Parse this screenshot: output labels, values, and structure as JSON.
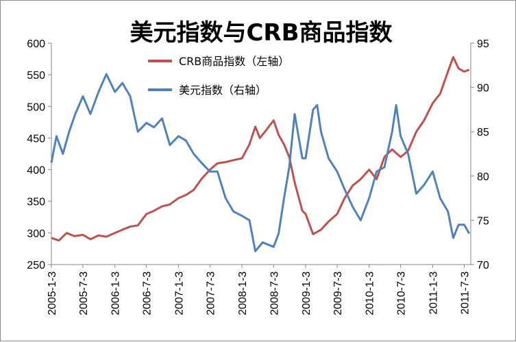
{
  "chart_data": {
    "type": "line",
    "title": "美元指数与CRB商品指数",
    "xlabel": "",
    "ylabel_left": "",
    "ylabel_right": "",
    "x_tick_labels": [
      "2005-1-3",
      "2005-7-3",
      "2006-1-3",
      "2006-7-3",
      "2007-1-3",
      "2007-7-3",
      "2008-1-3",
      "2008-7-3",
      "2009-1-3",
      "2009-7-3",
      "2010-1-3",
      "2010-7-3",
      "2011-1-3",
      "2011-7-3"
    ],
    "y_left": {
      "min": 250,
      "max": 600,
      "ticks": [
        250,
        300,
        350,
        400,
        450,
        500,
        550,
        600
      ]
    },
    "y_right": {
      "min": 70,
      "max": 95,
      "ticks": [
        70,
        75,
        80,
        85,
        90,
        95
      ]
    },
    "grid": false,
    "legend": {
      "position": "top-center"
    },
    "series": [
      {
        "name": "CRB商品指数（左轴）",
        "axis": "left",
        "color": "#C0504D",
        "points": [
          [
            "2005-01-03",
            292
          ],
          [
            "2005-02-15",
            288
          ],
          [
            "2005-04-01",
            300
          ],
          [
            "2005-05-15",
            295
          ],
          [
            "2005-07-03",
            297
          ],
          [
            "2005-08-15",
            290
          ],
          [
            "2005-10-01",
            296
          ],
          [
            "2005-11-15",
            294
          ],
          [
            "2006-01-03",
            300
          ],
          [
            "2006-02-15",
            305
          ],
          [
            "2006-04-01",
            310
          ],
          [
            "2006-05-15",
            312
          ],
          [
            "2006-07-03",
            330
          ],
          [
            "2006-08-15",
            335
          ],
          [
            "2006-10-01",
            342
          ],
          [
            "2006-11-15",
            345
          ],
          [
            "2007-01-03",
            355
          ],
          [
            "2007-02-15",
            360
          ],
          [
            "2007-04-01",
            368
          ],
          [
            "2007-05-15",
            385
          ],
          [
            "2007-07-03",
            400
          ],
          [
            "2007-08-15",
            410
          ],
          [
            "2007-10-01",
            412
          ],
          [
            "2007-11-15",
            415
          ],
          [
            "2008-01-03",
            418
          ],
          [
            "2008-02-15",
            440
          ],
          [
            "2008-03-20",
            468
          ],
          [
            "2008-04-15",
            450
          ],
          [
            "2008-05-20",
            462
          ],
          [
            "2008-07-03",
            478
          ],
          [
            "2008-08-01",
            455
          ],
          [
            "2008-09-01",
            440
          ],
          [
            "2008-10-01",
            420
          ],
          [
            "2008-11-01",
            380
          ],
          [
            "2008-12-15",
            335
          ],
          [
            "2009-01-03",
            330
          ],
          [
            "2009-02-15",
            298
          ],
          [
            "2009-04-01",
            305
          ],
          [
            "2009-05-15",
            318
          ],
          [
            "2009-07-03",
            330
          ],
          [
            "2009-08-15",
            355
          ],
          [
            "2009-10-01",
            375
          ],
          [
            "2009-11-15",
            385
          ],
          [
            "2010-01-03",
            400
          ],
          [
            "2010-02-15",
            385
          ],
          [
            "2010-04-01",
            420
          ],
          [
            "2010-05-15",
            432
          ],
          [
            "2010-07-03",
            420
          ],
          [
            "2010-08-15",
            430
          ],
          [
            "2010-10-01",
            460
          ],
          [
            "2010-11-15",
            478
          ],
          [
            "2011-01-03",
            505
          ],
          [
            "2011-02-15",
            520
          ],
          [
            "2011-04-01",
            555
          ],
          [
            "2011-05-01",
            578
          ],
          [
            "2011-06-01",
            560
          ],
          [
            "2011-07-03",
            555
          ],
          [
            "2011-08-01",
            558
          ]
        ]
      },
      {
        "name": "美元指数（右轴）",
        "axis": "right",
        "color": "#4F81BD",
        "points": [
          [
            "2005-01-03",
            81.5
          ],
          [
            "2005-02-01",
            84.5
          ],
          [
            "2005-03-10",
            82.5
          ],
          [
            "2005-04-15",
            85.0
          ],
          [
            "2005-05-20",
            87.0
          ],
          [
            "2005-07-03",
            89.0
          ],
          [
            "2005-08-15",
            87.0
          ],
          [
            "2005-10-01",
            89.5
          ],
          [
            "2005-11-15",
            91.5
          ],
          [
            "2006-01-03",
            89.5
          ],
          [
            "2006-02-15",
            90.5
          ],
          [
            "2006-04-01",
            89.0
          ],
          [
            "2006-05-15",
            85.0
          ],
          [
            "2006-07-03",
            86.0
          ],
          [
            "2006-08-15",
            85.5
          ],
          [
            "2006-10-01",
            86.5
          ],
          [
            "2006-11-15",
            83.5
          ],
          [
            "2007-01-03",
            84.5
          ],
          [
            "2007-02-15",
            84.0
          ],
          [
            "2007-04-01",
            82.5
          ],
          [
            "2007-05-15",
            81.5
          ],
          [
            "2007-07-03",
            80.5
          ],
          [
            "2007-08-15",
            80.5
          ],
          [
            "2007-10-01",
            77.5
          ],
          [
            "2007-11-15",
            76.0
          ],
          [
            "2008-01-03",
            75.5
          ],
          [
            "2008-02-15",
            75.0
          ],
          [
            "2008-03-20",
            71.5
          ],
          [
            "2008-05-01",
            72.5
          ],
          [
            "2008-07-03",
            72.0
          ],
          [
            "2008-08-01",
            73.5
          ],
          [
            "2008-09-01",
            77.5
          ],
          [
            "2008-10-01",
            81.0
          ],
          [
            "2008-11-01",
            87.0
          ],
          [
            "2008-12-15",
            82.0
          ],
          [
            "2009-01-03",
            82.0
          ],
          [
            "2009-02-15",
            87.5
          ],
          [
            "2009-03-10",
            88.0
          ],
          [
            "2009-04-01",
            85.0
          ],
          [
            "2009-05-15",
            82.0
          ],
          [
            "2009-07-03",
            80.5
          ],
          [
            "2009-08-15",
            78.5
          ],
          [
            "2009-10-01",
            76.5
          ],
          [
            "2009-11-15",
            75.0
          ],
          [
            "2010-01-03",
            77.5
          ],
          [
            "2010-02-15",
            80.5
          ],
          [
            "2010-04-01",
            81.0
          ],
          [
            "2010-05-15",
            85.0
          ],
          [
            "2010-06-07",
            88.0
          ],
          [
            "2010-07-03",
            84.5
          ],
          [
            "2010-08-15",
            82.5
          ],
          [
            "2010-10-01",
            78.0
          ],
          [
            "2010-11-15",
            79.0
          ],
          [
            "2011-01-03",
            80.5
          ],
          [
            "2011-02-15",
            77.5
          ],
          [
            "2011-04-01",
            76.0
          ],
          [
            "2011-05-01",
            73.0
          ],
          [
            "2011-06-01",
            74.5
          ],
          [
            "2011-07-03",
            74.5
          ],
          [
            "2011-08-01",
            73.5
          ]
        ]
      }
    ]
  }
}
